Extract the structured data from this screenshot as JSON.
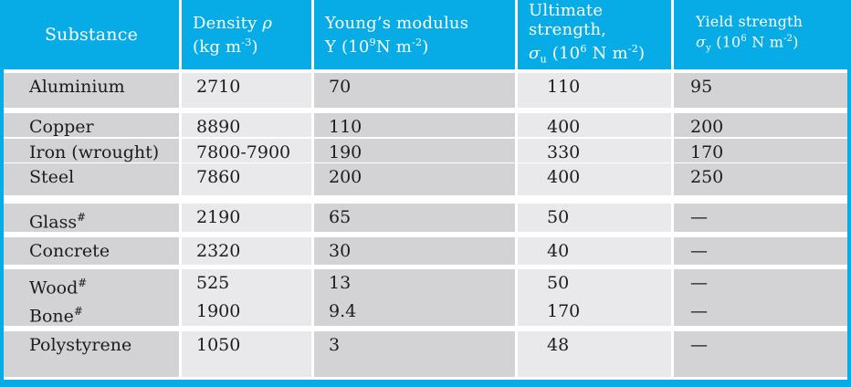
{
  "colors": {
    "header_bg": "#07ace6",
    "frame": "#07ace6",
    "cell_dark": "#d3d3d5",
    "cell_light": "#e9e9eb",
    "header_text": "#ffffff",
    "body_text": "#1c1c1c"
  },
  "table": {
    "header": {
      "columns": [
        {
          "id": "substance",
          "label": [
            {
              "t": "Substance"
            }
          ]
        },
        {
          "id": "density",
          "label": [
            {
              "t": "Density "
            },
            {
              "t": "ρ",
              "s": "i"
            },
            {
              "s": "br"
            },
            {
              "t": "(kg m"
            },
            {
              "t": "-3",
              "s": "sup"
            },
            {
              "t": ")"
            }
          ]
        },
        {
          "id": "youngs_modulus",
          "label": [
            {
              "t": "Young’s modulus"
            },
            {
              "s": "br"
            },
            {
              "t": "Y (10"
            },
            {
              "t": "9",
              "s": "sup"
            },
            {
              "t": "N m"
            },
            {
              "t": "-2",
              "s": "sup"
            },
            {
              "t": ")"
            }
          ]
        },
        {
          "id": "ultimate_strength",
          "label": [
            {
              "t": "Ultimate"
            },
            {
              "s": "br"
            },
            {
              "t": "strength,"
            },
            {
              "s": "br"
            },
            {
              "t": "σ",
              "s": "i"
            },
            {
              "t": "u",
              "s": "sub"
            },
            {
              "t": " (10"
            },
            {
              "t": "6",
              "s": "sup"
            },
            {
              "t": " N m"
            },
            {
              "t": "-2",
              "s": "sup"
            },
            {
              "t": ")"
            }
          ]
        },
        {
          "id": "yield_strength",
          "label": [
            {
              "t": "Yield strength"
            },
            {
              "s": "br"
            },
            {
              "t": "σ",
              "s": "i"
            },
            {
              "t": "y",
              "s": "sub"
            },
            {
              "t": " (10"
            },
            {
              "t": "6",
              "s": "sup"
            },
            {
              "t": " N m"
            },
            {
              "t": "-2",
              "s": "sup"
            },
            {
              "t": ")"
            }
          ]
        }
      ]
    },
    "rows": [
      {
        "substance": [
          {
            "t": "Aluminium"
          }
        ],
        "density": "2710",
        "youngs": "70",
        "ultimate": "110",
        "yield": "95"
      },
      {
        "substance": [
          {
            "t": "Copper"
          }
        ],
        "density": "8890",
        "youngs": "110",
        "ultimate": "400",
        "yield": "200"
      },
      {
        "substance": [
          {
            "t": "Iron (wrought)"
          }
        ],
        "density": "7800-7900",
        "youngs": "190",
        "ultimate": "330",
        "yield": "170"
      },
      {
        "substance": [
          {
            "t": "Steel"
          }
        ],
        "density": "7860",
        "youngs": "200",
        "ultimate": "400",
        "yield": "250"
      },
      {
        "substance": [
          {
            "t": "Glass"
          },
          {
            "t": "#",
            "s": "sup"
          }
        ],
        "density": "2190",
        "youngs": "65",
        "ultimate": "50",
        "yield": "—"
      },
      {
        "substance": [
          {
            "t": "Concrete"
          }
        ],
        "density": "2320",
        "youngs": "30",
        "ultimate": "40",
        "yield": "—"
      },
      {
        "substance": [
          {
            "t": "Wood"
          },
          {
            "t": "#",
            "s": "sup"
          }
        ],
        "density": "525",
        "youngs": "13",
        "ultimate": "50",
        "yield": "—"
      },
      {
        "substance": [
          {
            "t": "Bone"
          },
          {
            "t": "#",
            "s": "sup"
          }
        ],
        "density": "1900",
        "youngs": "9.4",
        "ultimate": "170",
        "yield": "—"
      },
      {
        "substance": [
          {
            "t": "Polystyrene"
          }
        ],
        "density": "1050",
        "youngs": "3",
        "ultimate": "48",
        "yield": "—"
      }
    ]
  }
}
